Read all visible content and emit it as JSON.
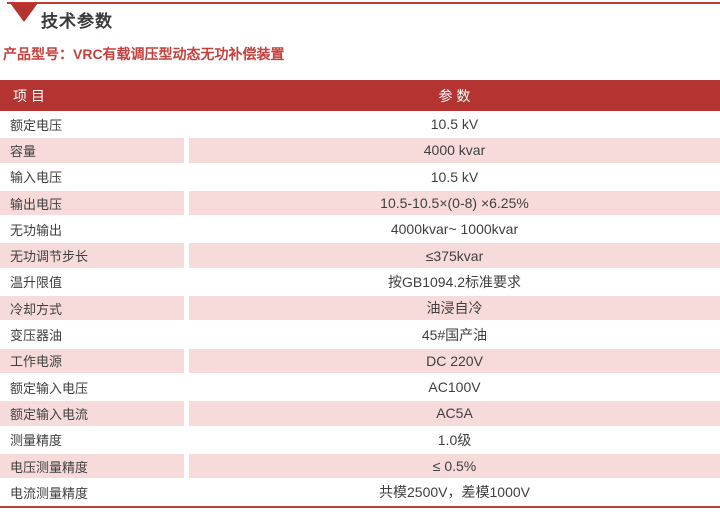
{
  "page": {
    "title": "技术参数",
    "product_label": "产品型号：VRC有载调压型动态无功补偿装置"
  },
  "colors": {
    "header_red": "#b43431",
    "row_pink": "#f7dbda",
    "accent_red": "#c33b32",
    "bottom_rule_red": "#b8423b",
    "product_text_red": "#c5403c"
  },
  "table": {
    "headers": [
      "项 目",
      "参 数"
    ],
    "rows": [
      {
        "item": "额定电压",
        "value": "10.5 kV"
      },
      {
        "item": "容量",
        "value": "4000 kvar"
      },
      {
        "item": "输入电压",
        "value": "10.5 kV"
      },
      {
        "item": "输出电压",
        "value": "10.5-10.5×(0-8) ×6.25%"
      },
      {
        "item": "无功输出",
        "value": "4000kvar~ 1000kvar"
      },
      {
        "item": "无功调节步长",
        "value": "≤375kvar"
      },
      {
        "item": "温升限值",
        "value": "按GB1094.2标准要求"
      },
      {
        "item": "冷却方式",
        "value": "油浸自冷"
      },
      {
        "item": "变压器油",
        "value": "45#国产油"
      },
      {
        "item": "工作电源",
        "value": "DC 220V"
      },
      {
        "item": "额定输入电压",
        "value": "AC100V"
      },
      {
        "item": "额定输入电流",
        "value": "AC5A"
      },
      {
        "item": "测量精度",
        "value": "1.0级"
      },
      {
        "item": "电压测量精度",
        "value": "≤ 0.5%"
      },
      {
        "item": "电流测量精度",
        "value": "共模2500V，差模1000V"
      }
    ]
  }
}
